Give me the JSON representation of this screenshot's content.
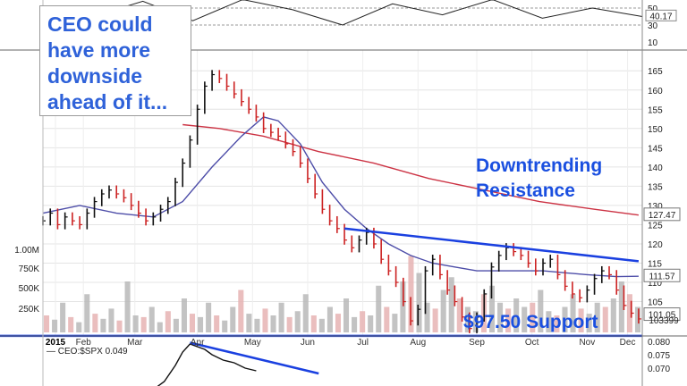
{
  "callout": {
    "lines": [
      "CEO could",
      "have more",
      "downside",
      "ahead of it..."
    ]
  },
  "annotations": {
    "resistance_line1": "Downtrending",
    "resistance_line2": "Resistance",
    "support": "$97.50 Support"
  },
  "colors": {
    "price": "#111111",
    "down": "#cc2222",
    "sma50": "#4d4da8",
    "sma200": "#cc3344",
    "trendline": "#1a40e0",
    "volume": "#b8b8b8",
    "annotation": "#1a4fe0"
  },
  "chart_data": {
    "type": "line",
    "x_axis": {
      "labels": [
        "2015",
        "Feb",
        "Mar",
        "Apr",
        "May",
        "Jun",
        "Jul",
        "Aug",
        "Sep",
        "Oct",
        "Nov",
        "Dec"
      ]
    },
    "rsi_panel": {
      "ticks": [
        "50",
        "30",
        "10"
      ],
      "last_value": "40.17",
      "series": [
        52,
        40,
        58,
        35,
        60,
        48,
        30,
        55,
        42,
        60,
        38,
        50,
        40
      ]
    },
    "price_panel": {
      "y_ticks": [
        "165",
        "160",
        "155",
        "150",
        "145",
        "140",
        "135",
        "130",
        "125",
        "120",
        "115",
        "110",
        "105"
      ],
      "ylim": [
        97,
        169
      ],
      "last_labels": {
        "sma200": "127.47",
        "sma50": "111.57",
        "close": "101.05"
      },
      "close": [
        [
          0,
          126
        ],
        [
          4,
          128
        ],
        [
          8,
          125
        ],
        [
          12,
          127
        ],
        [
          16,
          126
        ],
        [
          20,
          125
        ],
        [
          24,
          128
        ],
        [
          28,
          131
        ],
        [
          32,
          133
        ],
        [
          36,
          134
        ],
        [
          40,
          133
        ],
        [
          44,
          132
        ],
        [
          48,
          130
        ],
        [
          52,
          128
        ],
        [
          56,
          126
        ],
        [
          60,
          127
        ],
        [
          64,
          129
        ],
        [
          68,
          131
        ],
        [
          72,
          136
        ],
        [
          76,
          141
        ],
        [
          80,
          147
        ],
        [
          84,
          155
        ],
        [
          88,
          161
        ],
        [
          92,
          164
        ],
        [
          96,
          163
        ],
        [
          100,
          161
        ],
        [
          104,
          159
        ],
        [
          108,
          157
        ],
        [
          112,
          155
        ],
        [
          116,
          153
        ],
        [
          120,
          150
        ],
        [
          124,
          149
        ],
        [
          128,
          148
        ],
        [
          132,
          146
        ],
        [
          136,
          144
        ],
        [
          140,
          141
        ],
        [
          144,
          137
        ],
        [
          148,
          133
        ],
        [
          152,
          129
        ],
        [
          156,
          126
        ],
        [
          160,
          124
        ],
        [
          164,
          121
        ],
        [
          168,
          119
        ],
        [
          172,
          121
        ],
        [
          176,
          123
        ],
        [
          180,
          120
        ],
        [
          184,
          116
        ],
        [
          188,
          113
        ],
        [
          192,
          110
        ],
        [
          196,
          105
        ],
        [
          200,
          100
        ],
        [
          204,
          103
        ],
        [
          208,
          113
        ],
        [
          212,
          116
        ],
        [
          216,
          112
        ],
        [
          220,
          108
        ],
        [
          224,
          105
        ],
        [
          228,
          101
        ],
        [
          232,
          98
        ],
        [
          236,
          101
        ],
        [
          240,
          107
        ],
        [
          244,
          114
        ],
        [
          248,
          117
        ],
        [
          252,
          119
        ],
        [
          256,
          118
        ],
        [
          260,
          117
        ],
        [
          264,
          115
        ],
        [
          268,
          113
        ],
        [
          272,
          115
        ],
        [
          276,
          116
        ],
        [
          280,
          112
        ],
        [
          284,
          109
        ],
        [
          288,
          107
        ],
        [
          292,
          106
        ],
        [
          296,
          108
        ],
        [
          300,
          111
        ],
        [
          304,
          113
        ],
        [
          308,
          112
        ],
        [
          312,
          108
        ],
        [
          316,
          104
        ],
        [
          320,
          102
        ],
        [
          324,
          100.5
        ]
      ],
      "sma50": [
        [
          0,
          128
        ],
        [
          20,
          130
        ],
        [
          40,
          128
        ],
        [
          60,
          127
        ],
        [
          76,
          131
        ],
        [
          92,
          140
        ],
        [
          108,
          148
        ],
        [
          120,
          153
        ],
        [
          128,
          152
        ],
        [
          140,
          146
        ],
        [
          152,
          136
        ],
        [
          164,
          129
        ],
        [
          176,
          124
        ],
        [
          188,
          120
        ],
        [
          200,
          117
        ],
        [
          212,
          115
        ],
        [
          224,
          114
        ],
        [
          236,
          113
        ],
        [
          248,
          113
        ],
        [
          260,
          113
        ],
        [
          272,
          113
        ],
        [
          284,
          112.5
        ],
        [
          296,
          112
        ],
        [
          312,
          111.5
        ],
        [
          324,
          111.6
        ]
      ],
      "sma200": [
        [
          76,
          151
        ],
        [
          96,
          150
        ],
        [
          120,
          148
        ],
        [
          150,
          144
        ],
        [
          180,
          141
        ],
        [
          210,
          137
        ],
        [
          240,
          134
        ],
        [
          270,
          131
        ],
        [
          300,
          129
        ],
        [
          324,
          127.5
        ]
      ],
      "resistance_line": [
        [
          164,
          124
        ],
        [
          324,
          115.5
        ]
      ],
      "support_level": 97.5
    },
    "volume_panel": {
      "y_ticks": [
        "1.00M",
        "750K",
        "500K",
        "250K"
      ],
      "avg_label": "103399",
      "series": [
        0.2,
        0.15,
        0.35,
        0.18,
        0.12,
        0.45,
        0.22,
        0.16,
        0.28,
        0.14,
        0.6,
        0.2,
        0.18,
        0.3,
        0.12,
        0.25,
        0.16,
        0.4,
        0.22,
        0.18,
        0.35,
        0.2,
        0.14,
        0.3,
        0.5,
        0.22,
        0.16,
        0.28,
        0.2,
        0.35,
        0.18,
        0.25,
        0.45,
        0.2,
        0.16,
        0.3,
        0.22,
        0.4,
        0.18,
        0.25,
        0.2,
        0.55,
        0.3,
        0.22,
        0.6,
        0.9,
        0.7,
        0.35,
        0.28,
        0.5,
        0.65,
        0.4,
        0.3,
        0.25,
        0.45,
        0.55,
        0.35,
        0.28,
        0.4,
        0.3,
        0.35,
        0.5,
        0.25,
        0.2,
        0.3,
        0.45,
        0.28,
        0.22,
        0.35,
        0.3,
        0.4,
        0.6,
        0.45,
        0.3
      ]
    },
    "relative_panel": {
      "label": "CEO:$SPX 0.049",
      "y_ticks": [
        "0.080",
        "0.075",
        "0.070"
      ],
      "series": [
        [
          60,
          0.062
        ],
        [
          66,
          0.065
        ],
        [
          72,
          0.071
        ],
        [
          76,
          0.076
        ],
        [
          80,
          0.079
        ],
        [
          84,
          0.078
        ],
        [
          88,
          0.077
        ],
        [
          92,
          0.075
        ],
        [
          98,
          0.073
        ],
        [
          104,
          0.072
        ],
        [
          110,
          0.07
        ],
        [
          116,
          0.069
        ]
      ],
      "trendline": [
        [
          80,
          0.0795
        ],
        [
          150,
          0.068
        ]
      ]
    }
  }
}
